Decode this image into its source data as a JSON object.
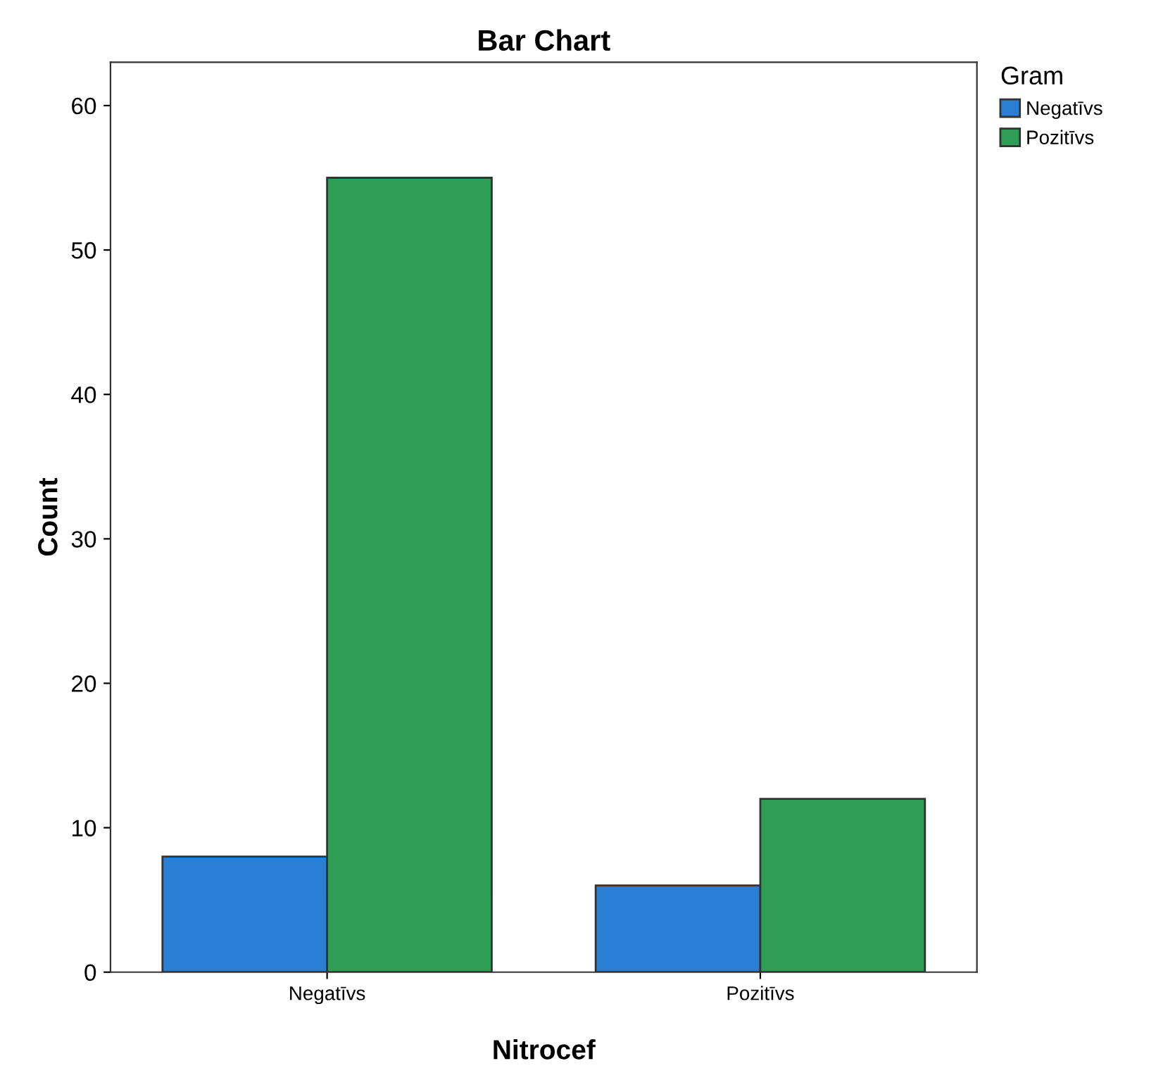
{
  "chart_data": {
    "type": "bar",
    "title": "Bar Chart",
    "xlabel": "Nitrocef",
    "ylabel": "Count",
    "legend_title": "Gram",
    "categories": [
      "Negatīvs",
      "Pozitīvs"
    ],
    "series": [
      {
        "name": "Negatīvs",
        "color": "#2a7fd4",
        "values": [
          8,
          6
        ]
      },
      {
        "name": "Pozitīvs",
        "color": "#2e9e55",
        "values": [
          55,
          12
        ]
      }
    ],
    "ylim": [
      0,
      63
    ],
    "yticks": [
      0,
      10,
      20,
      30,
      40,
      50,
      60
    ],
    "grid": false,
    "legend": "top right"
  }
}
